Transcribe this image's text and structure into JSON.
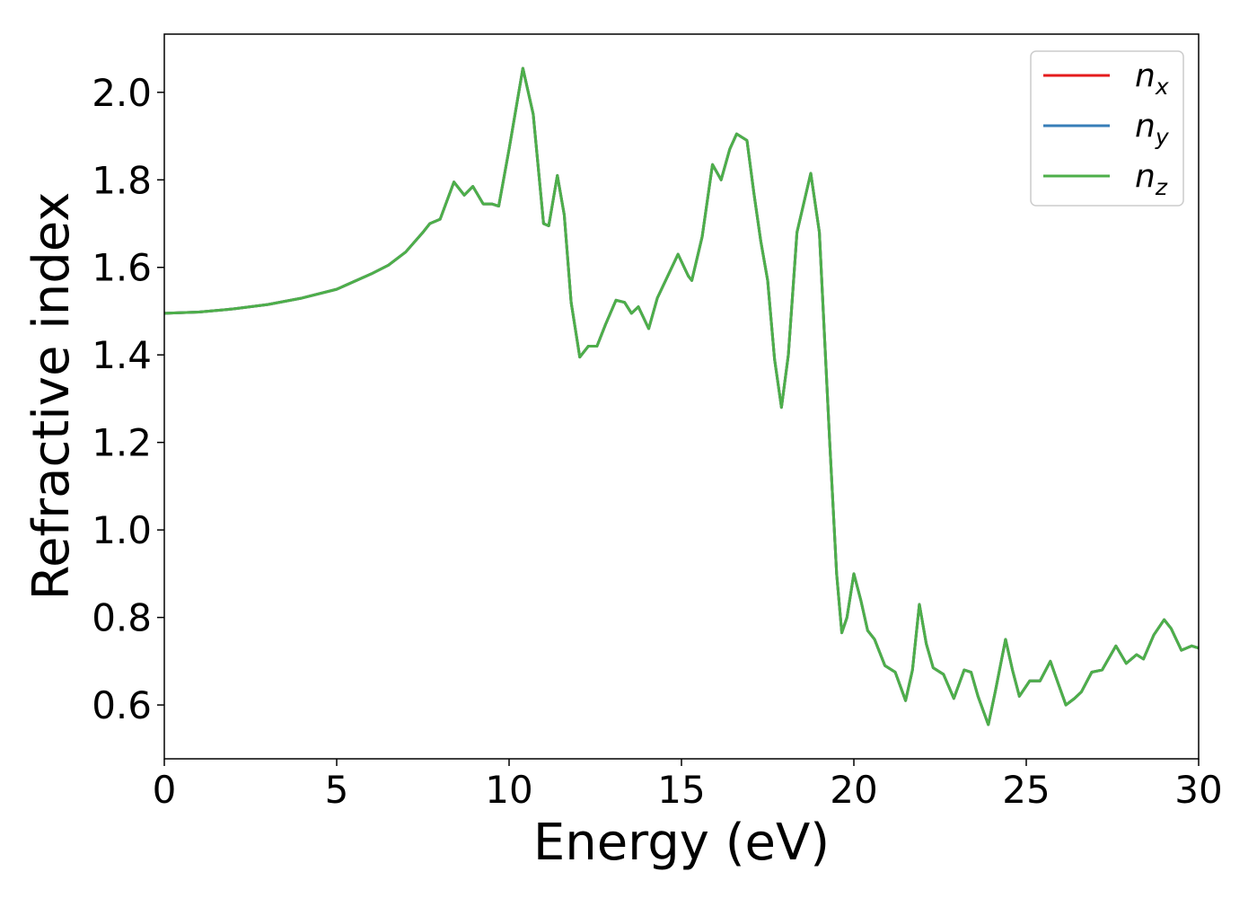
{
  "chart_data": {
    "type": "line",
    "xlabel": "Energy (eV)",
    "ylabel": "Refractive index",
    "x": [
      0,
      1,
      2,
      3,
      4,
      5,
      6,
      6.5,
      7,
      7.5,
      7.7,
      8.0,
      8.4,
      8.7,
      8.95,
      9.25,
      9.5,
      9.7,
      10.0,
      10.4,
      10.7,
      11.0,
      11.15,
      11.4,
      11.6,
      11.8,
      12.05,
      12.3,
      12.55,
      12.8,
      13.1,
      13.35,
      13.55,
      13.75,
      14.05,
      14.3,
      14.6,
      14.9,
      15.2,
      15.3,
      15.6,
      15.9,
      16.15,
      16.4,
      16.6,
      16.9,
      17.1,
      17.3,
      17.5,
      17.7,
      17.9,
      18.1,
      18.35,
      18.75,
      19.0,
      19.3,
      19.5,
      19.65,
      19.8,
      20.0,
      20.2,
      20.4,
      20.6,
      20.9,
      21.2,
      21.5,
      21.7,
      21.9,
      22.1,
      22.3,
      22.6,
      22.9,
      23.2,
      23.4,
      23.6,
      23.9,
      24.1,
      24.4,
      24.6,
      24.8,
      25.1,
      25.4,
      25.7,
      25.9,
      26.15,
      26.4,
      26.6,
      26.9,
      27.2,
      27.6,
      27.9,
      28.2,
      28.4,
      28.7,
      29.0,
      29.2,
      29.5,
      29.8,
      30.0
    ],
    "series": [
      {
        "name": "nx",
        "color": "#e41a1c",
        "values": [
          1.495,
          1.498,
          1.505,
          1.515,
          1.53,
          1.55,
          1.585,
          1.605,
          1.635,
          1.68,
          1.7,
          1.71,
          1.795,
          1.765,
          1.785,
          1.745,
          1.745,
          1.74,
          1.87,
          2.055,
          1.95,
          1.7,
          1.695,
          1.81,
          1.72,
          1.52,
          1.395,
          1.42,
          1.42,
          1.47,
          1.525,
          1.52,
          1.495,
          1.51,
          1.46,
          1.53,
          1.58,
          1.63,
          1.58,
          1.57,
          1.67,
          1.835,
          1.8,
          1.87,
          1.905,
          1.89,
          1.77,
          1.66,
          1.57,
          1.39,
          1.28,
          1.4,
          1.68,
          1.815,
          1.68,
          1.2,
          0.9,
          0.765,
          0.8,
          0.9,
          0.84,
          0.77,
          0.75,
          0.69,
          0.675,
          0.61,
          0.68,
          0.83,
          0.74,
          0.685,
          0.67,
          0.615,
          0.68,
          0.675,
          0.62,
          0.555,
          0.63,
          0.75,
          0.68,
          0.62,
          0.655,
          0.655,
          0.7,
          0.655,
          0.6,
          0.615,
          0.63,
          0.675,
          0.68,
          0.735,
          0.695,
          0.715,
          0.705,
          0.76,
          0.795,
          0.775,
          0.725,
          0.735,
          0.73
        ]
      },
      {
        "name": "ny",
        "color": "#377eb8",
        "values": [
          1.495,
          1.498,
          1.505,
          1.515,
          1.53,
          1.55,
          1.585,
          1.605,
          1.635,
          1.68,
          1.7,
          1.71,
          1.795,
          1.765,
          1.785,
          1.745,
          1.745,
          1.74,
          1.87,
          2.055,
          1.95,
          1.7,
          1.695,
          1.81,
          1.72,
          1.52,
          1.395,
          1.42,
          1.42,
          1.47,
          1.525,
          1.52,
          1.495,
          1.51,
          1.46,
          1.53,
          1.58,
          1.63,
          1.58,
          1.57,
          1.67,
          1.835,
          1.8,
          1.87,
          1.905,
          1.89,
          1.77,
          1.66,
          1.57,
          1.39,
          1.28,
          1.4,
          1.68,
          1.815,
          1.68,
          1.2,
          0.9,
          0.765,
          0.8,
          0.9,
          0.84,
          0.77,
          0.75,
          0.69,
          0.675,
          0.61,
          0.68,
          0.83,
          0.74,
          0.685,
          0.67,
          0.615,
          0.68,
          0.675,
          0.62,
          0.555,
          0.63,
          0.75,
          0.68,
          0.62,
          0.655,
          0.655,
          0.7,
          0.655,
          0.6,
          0.615,
          0.63,
          0.675,
          0.68,
          0.735,
          0.695,
          0.715,
          0.705,
          0.76,
          0.795,
          0.775,
          0.725,
          0.735,
          0.73
        ]
      },
      {
        "name": "nz",
        "color": "#4daf4a",
        "values": [
          1.495,
          1.498,
          1.505,
          1.515,
          1.53,
          1.55,
          1.585,
          1.605,
          1.635,
          1.68,
          1.7,
          1.71,
          1.795,
          1.765,
          1.785,
          1.745,
          1.745,
          1.74,
          1.87,
          2.055,
          1.95,
          1.7,
          1.695,
          1.81,
          1.72,
          1.52,
          1.395,
          1.42,
          1.42,
          1.47,
          1.525,
          1.52,
          1.495,
          1.51,
          1.46,
          1.53,
          1.58,
          1.63,
          1.58,
          1.57,
          1.67,
          1.835,
          1.8,
          1.87,
          1.905,
          1.89,
          1.77,
          1.66,
          1.57,
          1.39,
          1.28,
          1.4,
          1.68,
          1.815,
          1.68,
          1.2,
          0.9,
          0.765,
          0.8,
          0.9,
          0.84,
          0.77,
          0.75,
          0.69,
          0.675,
          0.61,
          0.68,
          0.83,
          0.74,
          0.685,
          0.67,
          0.615,
          0.68,
          0.675,
          0.62,
          0.555,
          0.63,
          0.75,
          0.68,
          0.62,
          0.655,
          0.655,
          0.7,
          0.655,
          0.6,
          0.615,
          0.63,
          0.675,
          0.68,
          0.735,
          0.695,
          0.715,
          0.705,
          0.76,
          0.795,
          0.775,
          0.725,
          0.735,
          0.73
        ]
      }
    ],
    "xlim": [
      0,
      30
    ],
    "xticks": [
      0,
      5,
      10,
      15,
      20,
      25,
      30
    ],
    "ylim": [
      0.477,
      2.133
    ],
    "yticks": [
      0.6,
      0.8,
      {
        "value": 1.0,
        "label": "1.0"
      },
      1.2,
      1.4,
      1.6,
      1.8,
      {
        "value": 2.0,
        "label": "2.0"
      }
    ],
    "legend": "upper right",
    "grid": false
  }
}
